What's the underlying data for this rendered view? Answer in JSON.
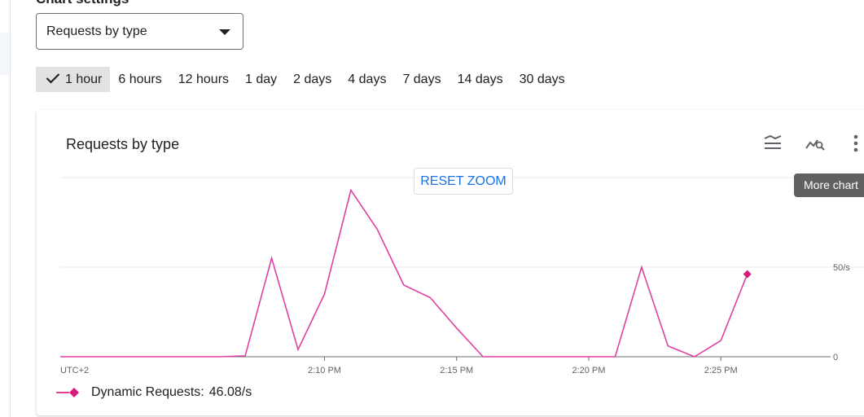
{
  "section_title": "Chart settings",
  "chart_select": {
    "value": "Requests by type"
  },
  "time_ranges": [
    {
      "label": "1 hour",
      "selected": true
    },
    {
      "label": "6 hours",
      "selected": false
    },
    {
      "label": "12 hours",
      "selected": false
    },
    {
      "label": "1 day",
      "selected": false
    },
    {
      "label": "2 days",
      "selected": false
    },
    {
      "label": "4 days",
      "selected": false
    },
    {
      "label": "7 days",
      "selected": false
    },
    {
      "label": "14 days",
      "selected": false
    },
    {
      "label": "30 days",
      "selected": false
    }
  ],
  "card": {
    "title": "Requests by type",
    "reset_zoom_label": "RESET ZOOM",
    "tooltip": "More chart",
    "icons": [
      "legend-icon",
      "explore-chart-icon",
      "more-vert-icon"
    ]
  },
  "legend": {
    "name": "Dynamic Requests:",
    "value": "46.08/s",
    "color": "#e040a0"
  },
  "chart_data": {
    "type": "line",
    "timezone_label": "UTC+2",
    "x_ticks": [
      "2:10 PM",
      "2:15 PM",
      "2:20 PM",
      "2:25 PM"
    ],
    "y_ticks": [
      "0",
      "50/s"
    ],
    "ylim": [
      0,
      100
    ],
    "series": [
      {
        "name": "Dynamic Requests",
        "color": "#e040a0",
        "x": [
          "2:00 PM",
          "2:01 PM",
          "2:02 PM",
          "2:03 PM",
          "2:04 PM",
          "2:05 PM",
          "2:06 PM",
          "2:07 PM",
          "2:08 PM",
          "2:09 PM",
          "2:10 PM",
          "2:11 PM",
          "2:12 PM",
          "2:13 PM",
          "2:14 PM",
          "2:15 PM",
          "2:16 PM",
          "2:17 PM",
          "2:18 PM",
          "2:19 PM",
          "2:20 PM",
          "2:21 PM",
          "2:22 PM",
          "2:23 PM",
          "2:24 PM",
          "2:25 PM",
          "2:26 PM"
        ],
        "values": [
          0,
          0,
          0,
          0,
          0,
          0,
          0,
          0.5,
          55,
          4,
          35,
          93,
          71,
          40,
          33,
          16,
          0,
          0,
          0,
          0,
          0,
          0,
          50,
          6,
          0,
          9,
          46.08
        ]
      }
    ]
  }
}
